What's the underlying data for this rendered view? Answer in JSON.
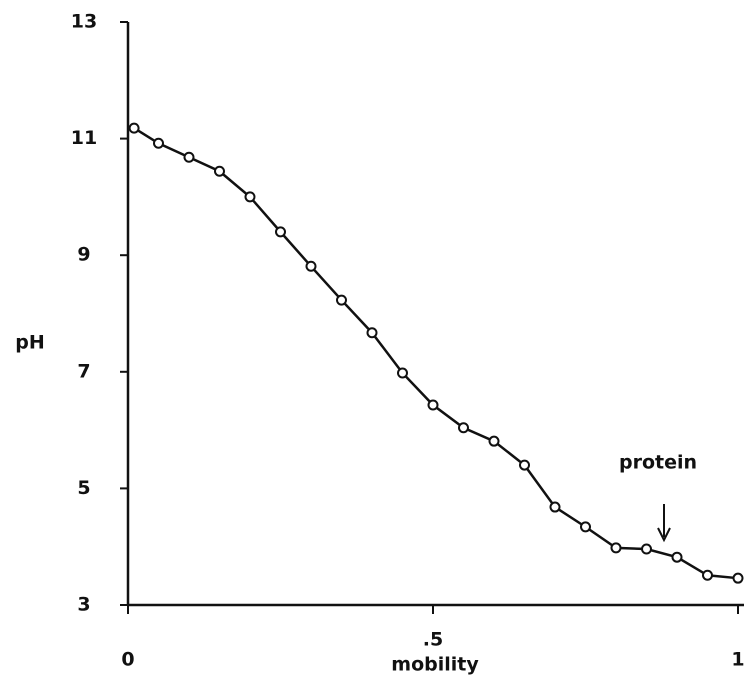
{
  "chart_data": {
    "type": "line",
    "x_label": "mobility",
    "y_label": "pH",
    "annotations": [
      "protein"
    ],
    "x": [
      0.01,
      0.05,
      0.1,
      0.15,
      0.2,
      0.25,
      0.3,
      0.35,
      0.4,
      0.45,
      0.5,
      0.55,
      0.6,
      0.65,
      0.7,
      0.75,
      0.8,
      0.85,
      0.9,
      0.95,
      1.0
    ],
    "series": [
      {
        "color": "#111111",
        "values": [
          11.18,
          10.92,
          10.68,
          10.44,
          10.0,
          9.4,
          8.81,
          8.23,
          7.67,
          6.98,
          6.43,
          6.04,
          5.81,
          5.4,
          4.68,
          4.34,
          3.98,
          3.96,
          3.82,
          3.51,
          3.46
        ]
      }
    ],
    "xlim": [
      0,
      1
    ],
    "xticks": [
      0,
      {
        "value": 0.5,
        "label": ".5"
      },
      1
    ],
    "ylim": [
      3,
      13
    ],
    "yticks": [
      3,
      5,
      7,
      9,
      11,
      13
    ],
    "grid": false
  }
}
